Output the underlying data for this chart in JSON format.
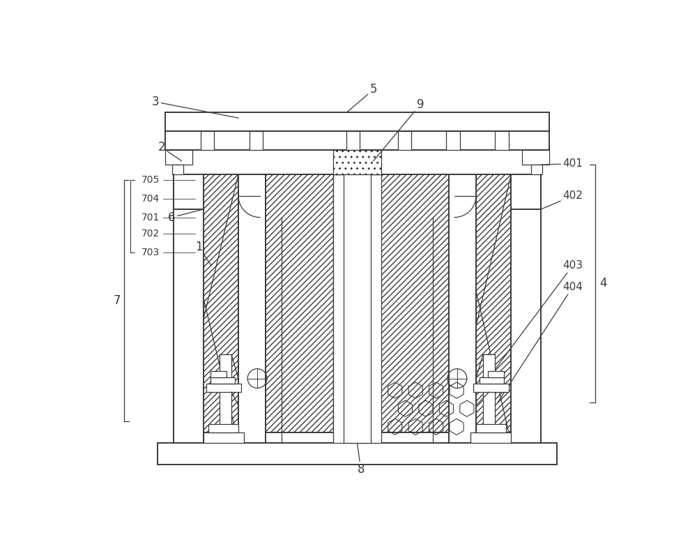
{
  "bg_color": "#ffffff",
  "lc": "#3a3a3a",
  "lw": 1.4,
  "tlw": 0.9,
  "fig_w": 10.0,
  "fig_h": 8.0
}
